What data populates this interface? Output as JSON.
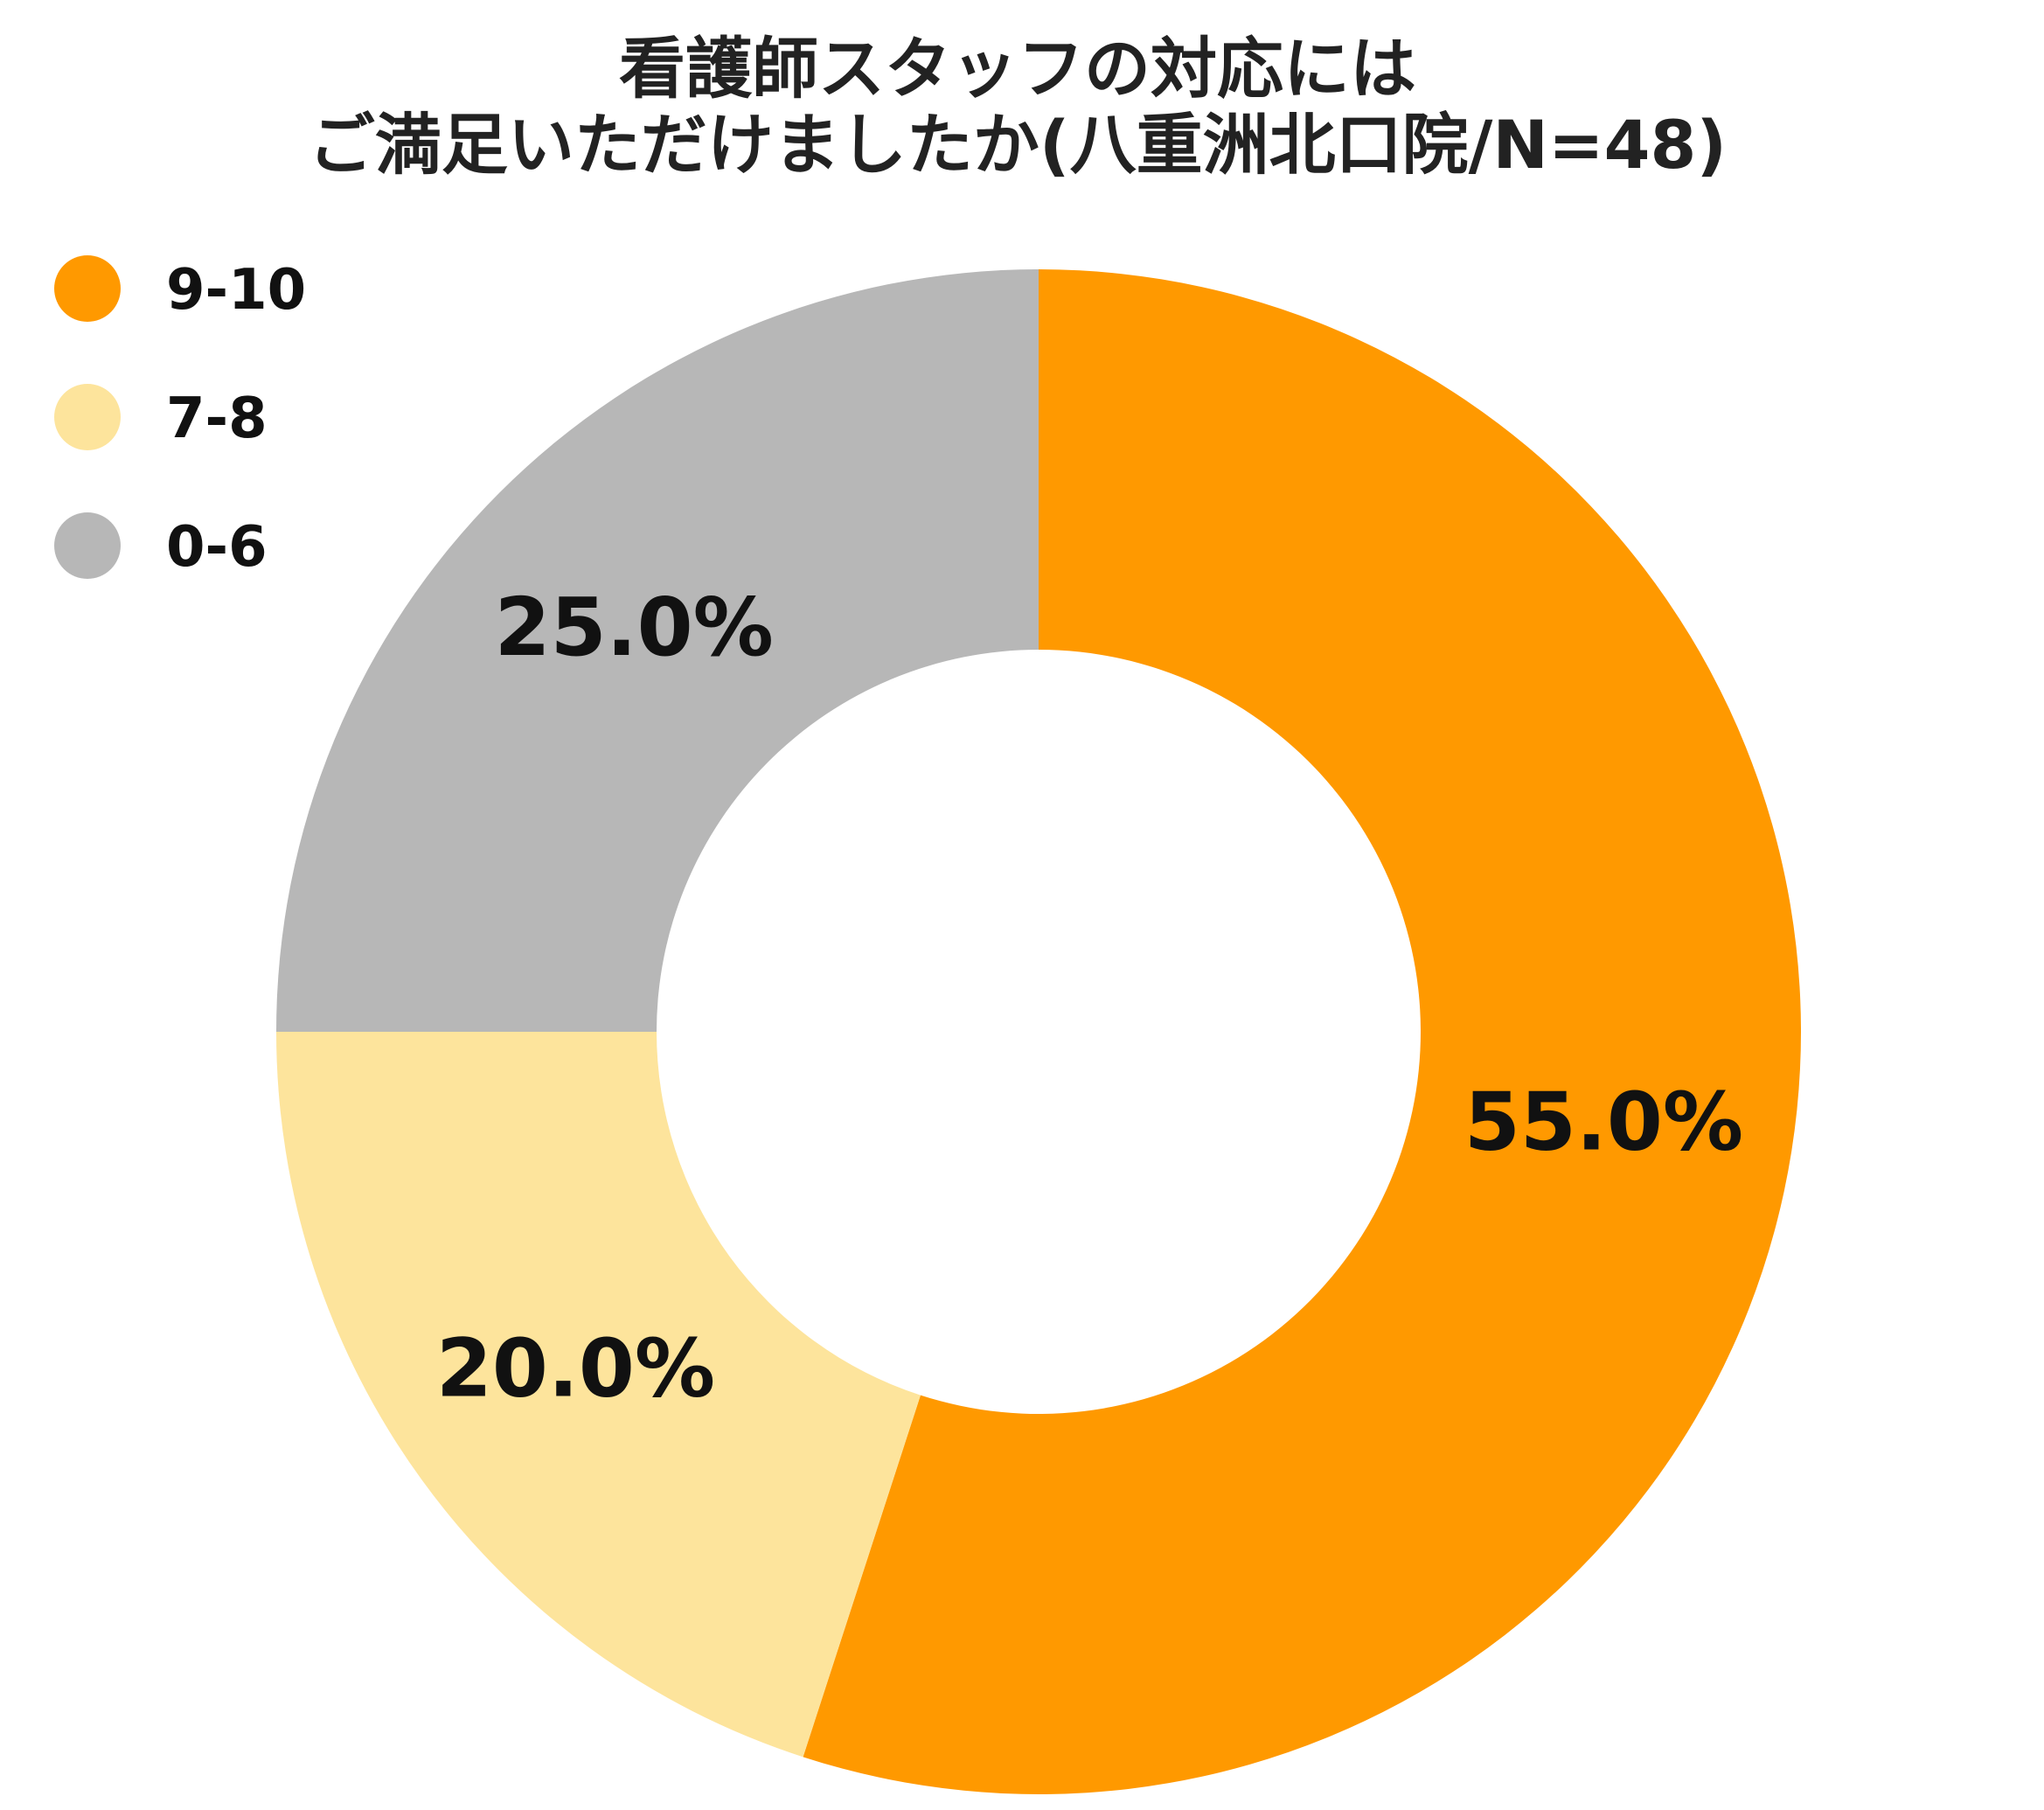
{
  "chart_data": {
    "type": "pie",
    "title_lines": [
      "看護師スタッフの対応には",
      "ご満足いただけましたか(八重洲北口院/N=48)"
    ],
    "categories": [
      "9-10",
      "7-8",
      "0-6"
    ],
    "values": [
      55.0,
      20.0,
      25.0
    ],
    "data_labels": [
      "55.0%",
      "20.0%",
      "25.0%"
    ],
    "colors": [
      "#ff9900",
      "#fde49c",
      "#b7b7b7"
    ],
    "donut": true,
    "legend_position": "top-left"
  }
}
